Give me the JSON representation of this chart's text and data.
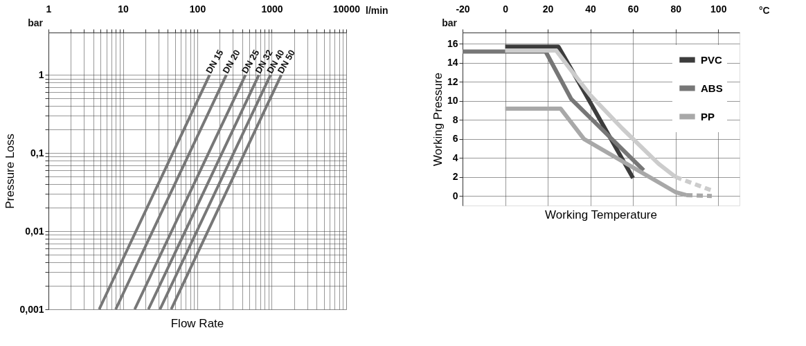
{
  "chart_data": [
    {
      "type": "line",
      "xlabel": "Flow Rate",
      "ylabel": "Pressure Loss",
      "annotations": [
        "l/min",
        "bar"
      ],
      "log": "xy",
      "grid": true,
      "legend": false,
      "xlim": [
        1,
        10000
      ],
      "ylim": [
        0.001,
        3.5
      ],
      "xticks": [
        1,
        {
          "value": 2,
          "label": null
        },
        {
          "value": 3,
          "label": null
        },
        {
          "value": 4,
          "label": null
        },
        {
          "value": 5,
          "label": null
        },
        {
          "value": 6,
          "label": null
        },
        {
          "value": 7,
          "label": null
        },
        {
          "value": 8,
          "label": null
        },
        {
          "value": 9,
          "label": null
        },
        10,
        {
          "value": 20,
          "label": null
        },
        {
          "value": 30,
          "label": null
        },
        {
          "value": 40,
          "label": null
        },
        {
          "value": 50,
          "label": null
        },
        {
          "value": 60,
          "label": null
        },
        {
          "value": 70,
          "label": null
        },
        {
          "value": 80,
          "label": null
        },
        {
          "value": 90,
          "label": null
        },
        100,
        {
          "value": 200,
          "label": null
        },
        {
          "value": 300,
          "label": null
        },
        {
          "value": 400,
          "label": null
        },
        {
          "value": 500,
          "label": null
        },
        {
          "value": 600,
          "label": null
        },
        {
          "value": 700,
          "label": null
        },
        {
          "value": 800,
          "label": null
        },
        {
          "value": 900,
          "label": null
        },
        1000,
        {
          "value": 2000,
          "label": null
        },
        {
          "value": 3000,
          "label": null
        },
        {
          "value": 4000,
          "label": null
        },
        {
          "value": 5000,
          "label": null
        },
        {
          "value": 6000,
          "label": null
        },
        {
          "value": 7000,
          "label": null
        },
        {
          "value": 8000,
          "label": null
        },
        {
          "value": 9000,
          "label": null
        },
        10000
      ],
      "yticks": [
        {
          "value": 0.001,
          "label": "0,001"
        },
        {
          "value": 0.002,
          "label": null
        },
        {
          "value": 0.003,
          "label": null
        },
        {
          "value": 0.004,
          "label": null
        },
        {
          "value": 0.005,
          "label": null
        },
        {
          "value": 0.006,
          "label": null
        },
        {
          "value": 0.007,
          "label": null
        },
        {
          "value": 0.008,
          "label": null
        },
        {
          "value": 0.009,
          "label": null
        },
        {
          "value": 0.01,
          "label": "0,01"
        },
        {
          "value": 0.02,
          "label": null
        },
        {
          "value": 0.03,
          "label": null
        },
        {
          "value": 0.04,
          "label": null
        },
        {
          "value": 0.05,
          "label": null
        },
        {
          "value": 0.06,
          "label": null
        },
        {
          "value": 0.07,
          "label": null
        },
        {
          "value": 0.08,
          "label": null
        },
        {
          "value": 0.09,
          "label": null
        },
        {
          "value": 0.1,
          "label": "0,1"
        },
        {
          "value": 0.2,
          "label": null
        },
        {
          "value": 0.3,
          "label": null
        },
        {
          "value": 0.4,
          "label": null
        },
        {
          "value": 0.5,
          "label": null
        },
        {
          "value": 0.6,
          "label": null
        },
        {
          "value": 0.7,
          "label": null
        },
        {
          "value": 0.8,
          "label": null
        },
        {
          "value": 0.9,
          "label": null
        },
        1
      ],
      "series": [
        {
          "name": "DN 15",
          "color": "#777777",
          "x": [
            4.8,
            146
          ],
          "values": [
            0.001,
            1
          ]
        },
        {
          "name": "DN 20",
          "color": "#777777",
          "x": [
            8,
            245
          ],
          "values": [
            0.001,
            1
          ]
        },
        {
          "name": "DN 25",
          "color": "#777777",
          "x": [
            14.4,
            443
          ],
          "values": [
            0.001,
            1
          ]
        },
        {
          "name": "DN 32",
          "color": "#777777",
          "x": [
            22,
            670
          ],
          "values": [
            0.001,
            1
          ]
        },
        {
          "name": "DN 40",
          "color": "#777777",
          "x": [
            31.5,
            960
          ],
          "values": [
            0.001,
            1
          ]
        },
        {
          "name": "DN 50",
          "color": "#777777",
          "x": [
            44.5,
            1340
          ],
          "values": [
            0.001,
            1
          ]
        }
      ]
    },
    {
      "type": "line",
      "xlabel": "Working Temperature",
      "ylabel": "Working Pressure",
      "annotations": [
        "°C",
        "bar"
      ],
      "grid": true,
      "legend": "top right",
      "xlim": [
        -20,
        110
      ],
      "ylim": [
        -1,
        17.2
      ],
      "xticks": [
        -20,
        0,
        20,
        40,
        60,
        80,
        100
      ],
      "yticks": [
        0,
        2,
        4,
        6,
        8,
        10,
        12,
        14,
        16
      ],
      "series": [
        {
          "name": "PVC",
          "color": "#3c3c3c",
          "x": [
            0,
            25,
            35,
            60
          ],
          "values": [
            15.7,
            15.7,
            11.8,
            1.9
          ]
        },
        {
          "name": "ABS",
          "color": "#777777",
          "x": [
            -20,
            19,
            31,
            65
          ],
          "values": [
            15.2,
            15.2,
            10.2,
            2.7
          ]
        },
        {
          "name": "PP",
          "color": "#a8a8a8",
          "x": [
            0,
            26,
            37,
            80,
            85
          ],
          "values": [
            9.2,
            9.2,
            6.0,
            0.4,
            0.1
          ]
        },
        {
          "color": "#a8a8a8",
          "line_style": "dashed",
          "x": [
            85,
            97
          ],
          "values": [
            0.1,
            0
          ]
        },
        {
          "color": "#cccccc",
          "x": [
            0,
            24,
            30,
            40,
            55,
            72,
            80
          ],
          "values": [
            15.3,
            15.3,
            13.5,
            10.6,
            7.1,
            3.4,
            2.0
          ]
        },
        {
          "color": "#cccccc",
          "line_style": "dashed",
          "x": [
            80,
            98
          ],
          "values": [
            2.0,
            0.5
          ]
        }
      ]
    }
  ]
}
